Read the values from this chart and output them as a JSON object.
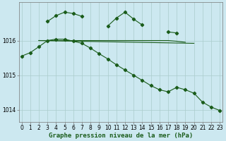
{
  "title": "Graphe pression niveau de la mer (hPa)",
  "bg_color": "#cce8f0",
  "grid_color": "#aacccc",
  "line_color": "#1a5c1a",
  "x": [
    0,
    1,
    2,
    3,
    4,
    5,
    6,
    7,
    8,
    9,
    10,
    11,
    12,
    13,
    14,
    15,
    16,
    17,
    18,
    19,
    20,
    21,
    22,
    23
  ],
  "line1": [
    null,
    null,
    null,
    1016.55,
    1016.7,
    1016.82,
    1016.78,
    1016.7,
    null,
    null,
    1016.45,
    1016.65,
    1016.82,
    1016.62,
    1016.45,
    null,
    null,
    null,
    null,
    null,
    null,
    null,
    null,
    null
  ],
  "line2_flat": [
    1016.0,
    1016.0,
    1016.0,
    1016.0,
    1016.0,
    1016.0,
    1016.0,
    1016.0,
    1016.0,
    1016.0,
    1016.0,
    1016.0,
    1016.0,
    1016.0,
    1016.0,
    1016.0,
    1016.0,
    1016.0,
    1016.0,
    1015.95
  ],
  "line2_flat_xend": 19,
  "line3_slope": [
    1016.0,
    1016.0,
    1016.0,
    1016.0,
    1016.0,
    1016.0,
    1016.0,
    1016.0,
    1016.0,
    1015.98,
    1015.95,
    1015.92,
    1015.88,
    1015.85,
    1015.8,
    1015.75,
    1015.72,
    1015.7,
    1015.68,
    1015.65,
    1015.95
  ],
  "line3_slope_xend": 20,
  "line4": [
    1015.55,
    1015.65,
    1015.82,
    1016.0,
    1016.04,
    1016.04,
    1015.98,
    1015.92,
    1015.78,
    1015.62,
    1015.47,
    1015.3,
    1015.15,
    1015.0,
    1014.85,
    1014.7,
    1014.58,
    1014.52,
    1014.65,
    1014.58,
    1014.48,
    1014.22,
    1014.08,
    1013.98
  ],
  "ylim": [
    1013.65,
    1017.1
  ],
  "yticks": [
    1014,
    1015,
    1016
  ],
  "tick_fontsize": 5.5,
  "xlabel_fontsize": 6.5
}
